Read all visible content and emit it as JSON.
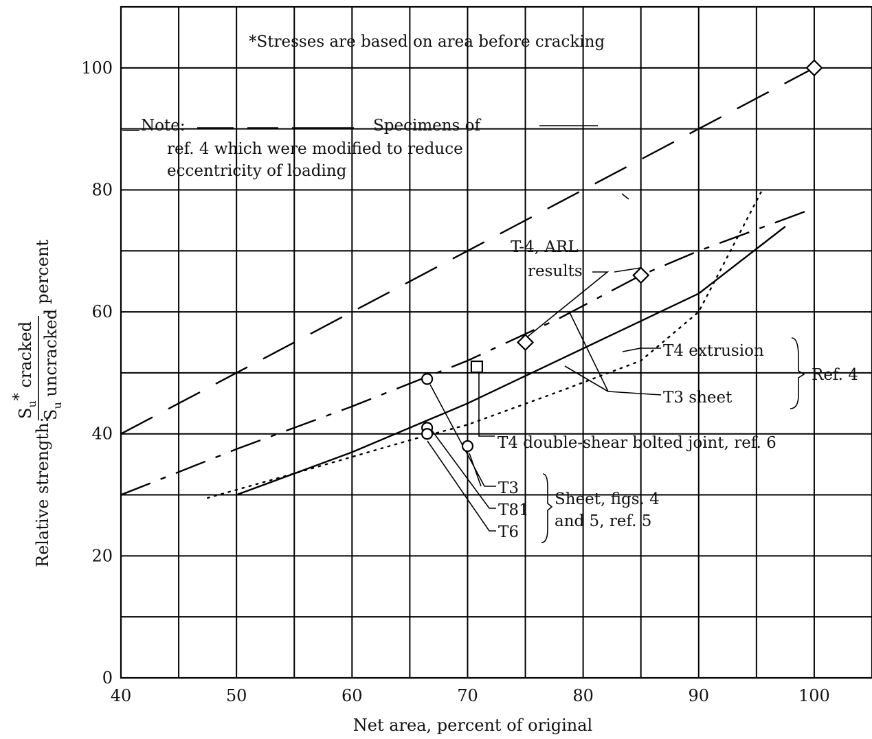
{
  "chart_data": {
    "type": "line",
    "xlabel": "Net area, percent of original",
    "ylabel": {
      "prefix": "Relative strength:",
      "numerator": "S",
      "numerator_sub": "u",
      "numerator_sup": "*",
      "numerator_rest": " cracked",
      "denominator": "S",
      "denominator_sub": "u",
      "denominator_rest": " uncracked",
      "suffix": ", percent"
    },
    "xlim": [
      40,
      105
    ],
    "ylim": [
      0,
      110
    ],
    "x_ticks": [
      40,
      50,
      60,
      70,
      80,
      90,
      100
    ],
    "y_ticks": [
      0,
      20,
      40,
      60,
      80,
      100
    ],
    "x_grid": [
      45,
      50,
      55,
      60,
      65,
      70,
      75,
      80,
      85,
      90,
      95,
      100
    ],
    "y_grid": [
      10,
      20,
      30,
      40,
      50,
      60,
      70,
      80,
      90,
      100
    ],
    "grid": true,
    "series": [
      {
        "style": "long-dash",
        "x": [
          40,
          100
        ],
        "y": [
          40,
          100
        ]
      },
      {
        "style": "dash-dot",
        "x": [
          40,
          50,
          60,
          70,
          78,
          85,
          90,
          100
        ],
        "y": [
          30,
          37.5,
          44.5,
          52,
          59,
          66,
          70,
          77
        ]
      },
      {
        "style": "solid",
        "x": [
          50,
          60,
          70,
          80,
          90,
          97.5
        ],
        "y": [
          30,
          37,
          45,
          54,
          63,
          74
        ]
      },
      {
        "style": "dotted",
        "x": [
          47.5,
          55,
          66,
          70,
          78,
          85,
          90,
          95.5
        ],
        "y": [
          29.5,
          33.5,
          39.5,
          41.5,
          47,
          52,
          60,
          80
        ]
      }
    ],
    "markers": [
      {
        "shape": "diamond",
        "label": "T-4, ARL results",
        "x": [
          75,
          85,
          100
        ],
        "y": [
          55,
          66,
          100
        ]
      },
      {
        "shape": "square",
        "label": "T4 double-shear bolted joint, ref. 6",
        "x": [
          70.8
        ],
        "y": [
          51
        ]
      },
      {
        "shape": "circle",
        "label": "T3",
        "x": [
          66.5,
          70
        ],
        "y": [
          49,
          38
        ]
      },
      {
        "shape": "circle",
        "label": "T81",
        "x": [
          66.5
        ],
        "y": [
          41
        ]
      },
      {
        "shape": "circle",
        "label": "T6",
        "x": [
          66.5
        ],
        "y": [
          40
        ]
      }
    ],
    "annotations": {
      "stress_note": "*Stresses are based on area before cracking",
      "note_label": "Note:",
      "note_text_1": "Specimens of",
      "note_text_2": "ref. 4 which were modified to reduce",
      "note_text_3": "eccentricity of loading",
      "t4_arl_1": "T-4, ARL",
      "t4_arl_2": "results",
      "t4_extrusion": "T4 extrusion",
      "t3_sheet": "T3 sheet",
      "ref4": "Ref. 4",
      "bolted_joint": "T4 double-shear bolted joint, ref. 6",
      "t3": "T3",
      "t81": "T81",
      "t6": "T6",
      "sheet_1": "Sheet, figs. 4",
      "sheet_2": "and 5, ref. 5"
    }
  }
}
